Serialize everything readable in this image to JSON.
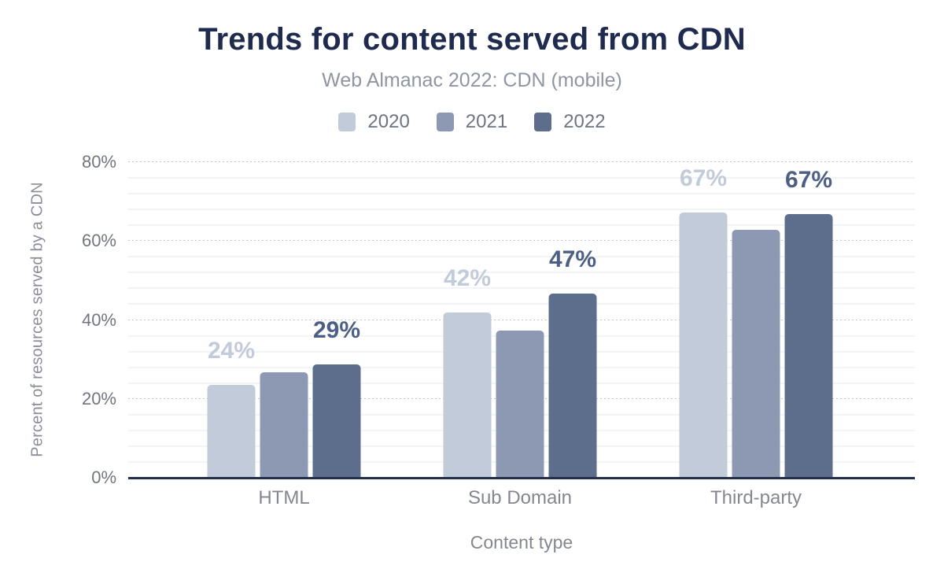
{
  "header": {
    "title": "Trends for content served from CDN",
    "subtitle": "Web Almanac 2022: CDN (mobile)"
  },
  "legend": [
    {
      "label": "2020",
      "color": "#c2cbda"
    },
    {
      "label": "2021",
      "color": "#8d99b2"
    },
    {
      "label": "2022",
      "color": "#5d6d8c"
    }
  ],
  "chart_data": {
    "type": "bar",
    "title": "Trends for content served from CDN",
    "subtitle": "Web Almanac 2022: CDN (mobile)",
    "categories": [
      "HTML",
      "Sub Domain",
      "Third-party"
    ],
    "series": [
      {
        "name": "2020",
        "color": "#c2cbda",
        "values": [
          23.5,
          41.8,
          67.3
        ],
        "labels": [
          "24%",
          "42%",
          "67%"
        ],
        "label_color": "#c2cbda"
      },
      {
        "name": "2021",
        "color": "#8d99b2",
        "values": [
          26.7,
          37.3,
          62.9
        ],
        "labels": [
          null,
          null,
          null
        ],
        "label_color": "#8d99b2"
      },
      {
        "name": "2022",
        "color": "#5d6d8c",
        "values": [
          28.7,
          46.7,
          66.9
        ],
        "labels": [
          "29%",
          "47%",
          "67%"
        ],
        "label_color": "#4d5f85"
      }
    ],
    "xlabel": "Content type",
    "ylabel": "Percent of resources served by a CDN",
    "ylim": [
      0,
      80
    ],
    "yticks": [
      "0%",
      "20%",
      "40%",
      "60%",
      "80%"
    ],
    "major_step": 20,
    "minor_step": 4,
    "grid": true,
    "legend_position": "top"
  }
}
